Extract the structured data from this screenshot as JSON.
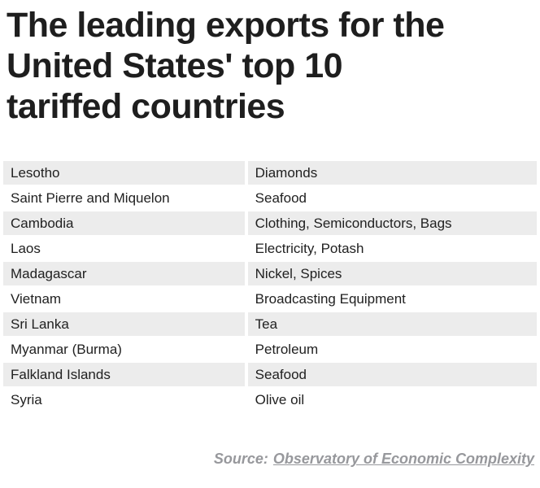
{
  "header": {
    "title_lines": [
      "The leading exports for the",
      "United States' top 10",
      "tariffed countries"
    ]
  },
  "chart_data": {
    "type": "table",
    "title": "The leading exports for the United States' top 10 tariffed countries",
    "rows": [
      [
        "Lesotho",
        "Diamonds"
      ],
      [
        "Saint Pierre and Miquelon",
        "Seafood"
      ],
      [
        "Cambodia",
        "Clothing, Semiconductors, Bags"
      ],
      [
        "Laos",
        "Electricity, Potash"
      ],
      [
        "Madagascar",
        "Nickel, Spices"
      ],
      [
        "Vietnam",
        "Broadcasting Equipment"
      ],
      [
        "Sri Lanka",
        "Tea"
      ],
      [
        "Myanmar (Burma)",
        "Petroleum"
      ],
      [
        "Falkland Islands",
        "Seafood"
      ],
      [
        "Syria",
        "Olive oil"
      ]
    ],
    "layout": {
      "striped_rows": "odd",
      "row_alt_color": "#ececec",
      "title_color": "#1e1e1e",
      "text_color": "#212121",
      "source_color": "#97989c",
      "grid": false
    }
  },
  "source": {
    "label": "Source:",
    "link_text": "Observatory of Economic Complexity"
  }
}
